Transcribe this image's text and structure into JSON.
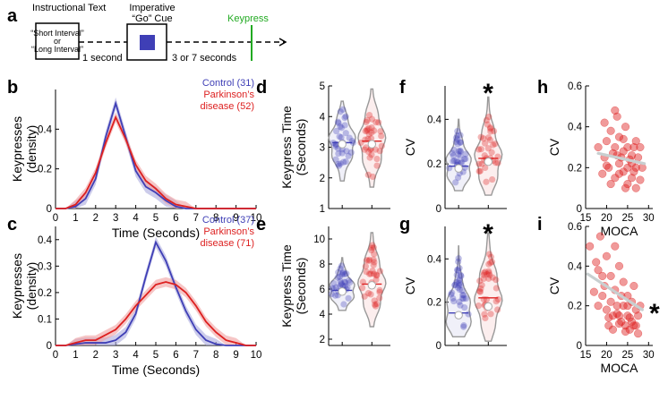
{
  "panel_labels": [
    "a",
    "b",
    "c",
    "d",
    "e",
    "f",
    "g",
    "h",
    "i"
  ],
  "timeline": {
    "instruction_title": "Instructional Text",
    "instruction_line1": "“Short Interval”",
    "instruction_or": "or",
    "instruction_line2": "“Long Interval”",
    "cue_title_line1": "Imperative",
    "cue_title_line2": "“Go” Cue",
    "delay1": "1 second",
    "delay2": "3 or 7 seconds",
    "keypress": "Keypress"
  },
  "colors": {
    "control": "#3f3fb6",
    "control_band": "#aaaadd",
    "pd": "#dd2020",
    "pd_band": "#f0a0a0",
    "keypress": "#22aa22",
    "violin": "#999999",
    "regression": "#c8cfd0"
  },
  "significance_marker": "*",
  "chart_data": [
    {
      "id": "b",
      "type": "line",
      "xlabel": "Time (Seconds)",
      "ylabel_line1": "Keypresses",
      "ylabel_line2": "(density)",
      "xlim": [
        0,
        10
      ],
      "ylim": [
        0,
        0.6
      ],
      "xticks": [
        0,
        1,
        2,
        3,
        4,
        5,
        6,
        7,
        8,
        9,
        10
      ],
      "yticks": [
        0,
        0.2,
        0.4
      ],
      "x": [
        0,
        0.5,
        1,
        1.5,
        2,
        2.5,
        3,
        3.5,
        4,
        4.5,
        5,
        5.5,
        6,
        6.5,
        7,
        7.5,
        8,
        8.5,
        9,
        9.5,
        10
      ],
      "legend": [
        {
          "line1": "Control (31)",
          "line2": ""
        },
        {
          "line1": "Parkinson’s",
          "line2": "disease (52)"
        }
      ],
      "series": [
        {
          "name": "Control (31)",
          "values": [
            0,
            0,
            0.01,
            0.05,
            0.15,
            0.36,
            0.53,
            0.36,
            0.19,
            0.11,
            0.08,
            0.04,
            0.01,
            0,
            0,
            0,
            0,
            0,
            0,
            0,
            0
          ],
          "band": 0.03
        },
        {
          "name": "Parkinson's disease (52)",
          "values": [
            0,
            0,
            0.02,
            0.08,
            0.18,
            0.33,
            0.46,
            0.35,
            0.22,
            0.14,
            0.1,
            0.05,
            0.02,
            0.01,
            0,
            0,
            0,
            0,
            0,
            0,
            0
          ],
          "band": 0.025
        }
      ]
    },
    {
      "id": "c",
      "type": "line",
      "xlabel": "Time (Seconds)",
      "ylabel_line1": "Keypresses",
      "ylabel_line2": "(density)",
      "xlim": [
        0,
        10
      ],
      "ylim": [
        0,
        0.45
      ],
      "xticks": [
        0,
        1,
        2,
        3,
        4,
        5,
        6,
        7,
        8,
        9,
        10
      ],
      "yticks": [
        0,
        0.1,
        0.2,
        0.3,
        0.4
      ],
      "x": [
        0,
        0.5,
        1,
        1.5,
        2,
        2.5,
        3,
        3.5,
        4,
        4.5,
        5,
        5.5,
        6,
        6.5,
        7,
        7.5,
        8,
        8.5,
        9,
        9.5,
        10
      ],
      "legend": [
        {
          "line1": "Control (37)",
          "line2": ""
        },
        {
          "line1": "Parkinson’s",
          "line2": "disease (71)"
        }
      ],
      "series": [
        {
          "name": "Control (37)",
          "values": [
            0,
            0,
            0.005,
            0.01,
            0.01,
            0.01,
            0.02,
            0.05,
            0.12,
            0.26,
            0.39,
            0.32,
            0.22,
            0.13,
            0.06,
            0.02,
            0.005,
            0,
            0,
            0,
            0
          ],
          "band": 0.02
        },
        {
          "name": "Parkinson's disease (71)",
          "values": [
            0,
            0,
            0.01,
            0.02,
            0.02,
            0.04,
            0.06,
            0.1,
            0.15,
            0.19,
            0.23,
            0.24,
            0.23,
            0.2,
            0.15,
            0.09,
            0.05,
            0.02,
            0.01,
            0,
            0
          ],
          "band": 0.018
        }
      ]
    },
    {
      "id": "d",
      "type": "violin",
      "ylabel_line1": "Keypress Time",
      "ylabel_line2": "(Seconds)",
      "ylim": [
        1,
        5
      ],
      "yticks": [
        1,
        2,
        3,
        4,
        5
      ],
      "groups": [
        {
          "name": "Control",
          "median": 3.15,
          "mean": 3.1,
          "min": 1.9,
          "max": 4.5
        },
        {
          "name": "Parkinson's disease",
          "median": 3.2,
          "mean": 3.1,
          "min": 1.7,
          "max": 4.9
        }
      ]
    },
    {
      "id": "e",
      "type": "violin",
      "ylabel_line1": "Keypress Time",
      "ylabel_line2": "(Seconds)",
      "ylim": [
        1.5,
        11
      ],
      "yticks": [
        2,
        4,
        6,
        8,
        10
      ],
      "groups": [
        {
          "name": "Control",
          "median": 5.9,
          "mean": 5.8,
          "min": 4.3,
          "max": 8.5
        },
        {
          "name": "Parkinson's disease",
          "median": 6.4,
          "mean": 6.3,
          "min": 3.0,
          "max": 10.5
        }
      ]
    },
    {
      "id": "f",
      "type": "violin",
      "ylabel_line1": "CV",
      "ylabel_line2": "",
      "ylim": [
        0,
        0.55
      ],
      "yticks": [
        0,
        0.2,
        0.4
      ],
      "significant": true,
      "groups": [
        {
          "name": "Control",
          "median": 0.19,
          "mean": 0.18,
          "min": 0.08,
          "max": 0.4
        },
        {
          "name": "Parkinson's disease",
          "median": 0.225,
          "mean": 0.21,
          "min": 0.06,
          "max": 0.5
        }
      ]
    },
    {
      "id": "g",
      "type": "violin",
      "ylabel_line1": "CV",
      "ylabel_line2": "",
      "ylim": [
        0,
        0.55
      ],
      "yticks": [
        0,
        0.2,
        0.4
      ],
      "significant": true,
      "groups": [
        {
          "name": "Control",
          "median": 0.15,
          "mean": 0.14,
          "min": 0.04,
          "max": 0.46
        },
        {
          "name": "Parkinson's disease",
          "median": 0.22,
          "mean": 0.18,
          "min": 0.02,
          "max": 0.52
        }
      ]
    },
    {
      "id": "h",
      "type": "scatter",
      "xlabel": "MOCA",
      "ylabel": "CV",
      "xlim": [
        15,
        31
      ],
      "ylim": [
        0,
        0.6
      ],
      "xticks": [
        15,
        20,
        25,
        30
      ],
      "yticks": [
        0,
        0.2,
        0.4,
        0.6
      ],
      "significant": false,
      "regression": {
        "x": [
          18,
          29
        ],
        "y": [
          0.27,
          0.22
        ]
      },
      "x": [
        18,
        19,
        19.5,
        20,
        20.5,
        21,
        21.5,
        22,
        22,
        22.5,
        23,
        23,
        23.5,
        24,
        24,
        24.5,
        25,
        25,
        25.5,
        26,
        26,
        26.5,
        27,
        27,
        27.5,
        28,
        28,
        21,
        22,
        24,
        26,
        27,
        25,
        23,
        20,
        28.5,
        24.5,
        26.5,
        22.5,
        19.5
      ],
      "y": [
        0.3,
        0.17,
        0.25,
        0.33,
        0.2,
        0.38,
        0.27,
        0.15,
        0.3,
        0.45,
        0.22,
        0.35,
        0.25,
        0.28,
        0.18,
        0.4,
        0.2,
        0.3,
        0.24,
        0.15,
        0.26,
        0.3,
        0.1,
        0.2,
        0.25,
        0.14,
        0.3,
        0.12,
        0.48,
        0.34,
        0.22,
        0.33,
        0.12,
        0.17,
        0.21,
        0.2,
        0.1,
        0.18,
        0.26,
        0.42
      ]
    },
    {
      "id": "i",
      "type": "scatter",
      "xlabel": "MOCA",
      "ylabel": "CV",
      "xlim": [
        15,
        31
      ],
      "ylim": [
        0,
        0.6
      ],
      "xticks": [
        15,
        20,
        25,
        30
      ],
      "yticks": [
        0,
        0.2,
        0.4,
        0.6
      ],
      "significant": true,
      "regression": {
        "x": [
          15.5,
          28.5
        ],
        "y": [
          0.36,
          0.18
        ]
      },
      "x": [
        16,
        17,
        17.5,
        18,
        18.5,
        19,
        19.5,
        20,
        20,
        20.5,
        21,
        21,
        21.5,
        22,
        22,
        22.5,
        23,
        23,
        23.5,
        24,
        24,
        24.5,
        25,
        25,
        25.5,
        26,
        26,
        26.5,
        27,
        27,
        27.5,
        28,
        21.5,
        23.5,
        25.5,
        24.5,
        22.5,
        26.5,
        20.5,
        19,
        27.5,
        25,
        18,
        23
      ],
      "y": [
        0.5,
        0.27,
        0.42,
        0.2,
        0.55,
        0.25,
        0.3,
        0.18,
        0.45,
        0.1,
        0.35,
        0.22,
        0.15,
        0.5,
        0.28,
        0.2,
        0.4,
        0.15,
        0.12,
        0.32,
        0.2,
        0.1,
        0.25,
        0.15,
        0.08,
        0.22,
        0.12,
        0.3,
        0.18,
        0.1,
        0.15,
        0.2,
        0.08,
        0.25,
        0.14,
        0.07,
        0.16,
        0.1,
        0.14,
        0.35,
        0.06,
        0.2,
        0.38,
        0.11
      ]
    }
  ]
}
